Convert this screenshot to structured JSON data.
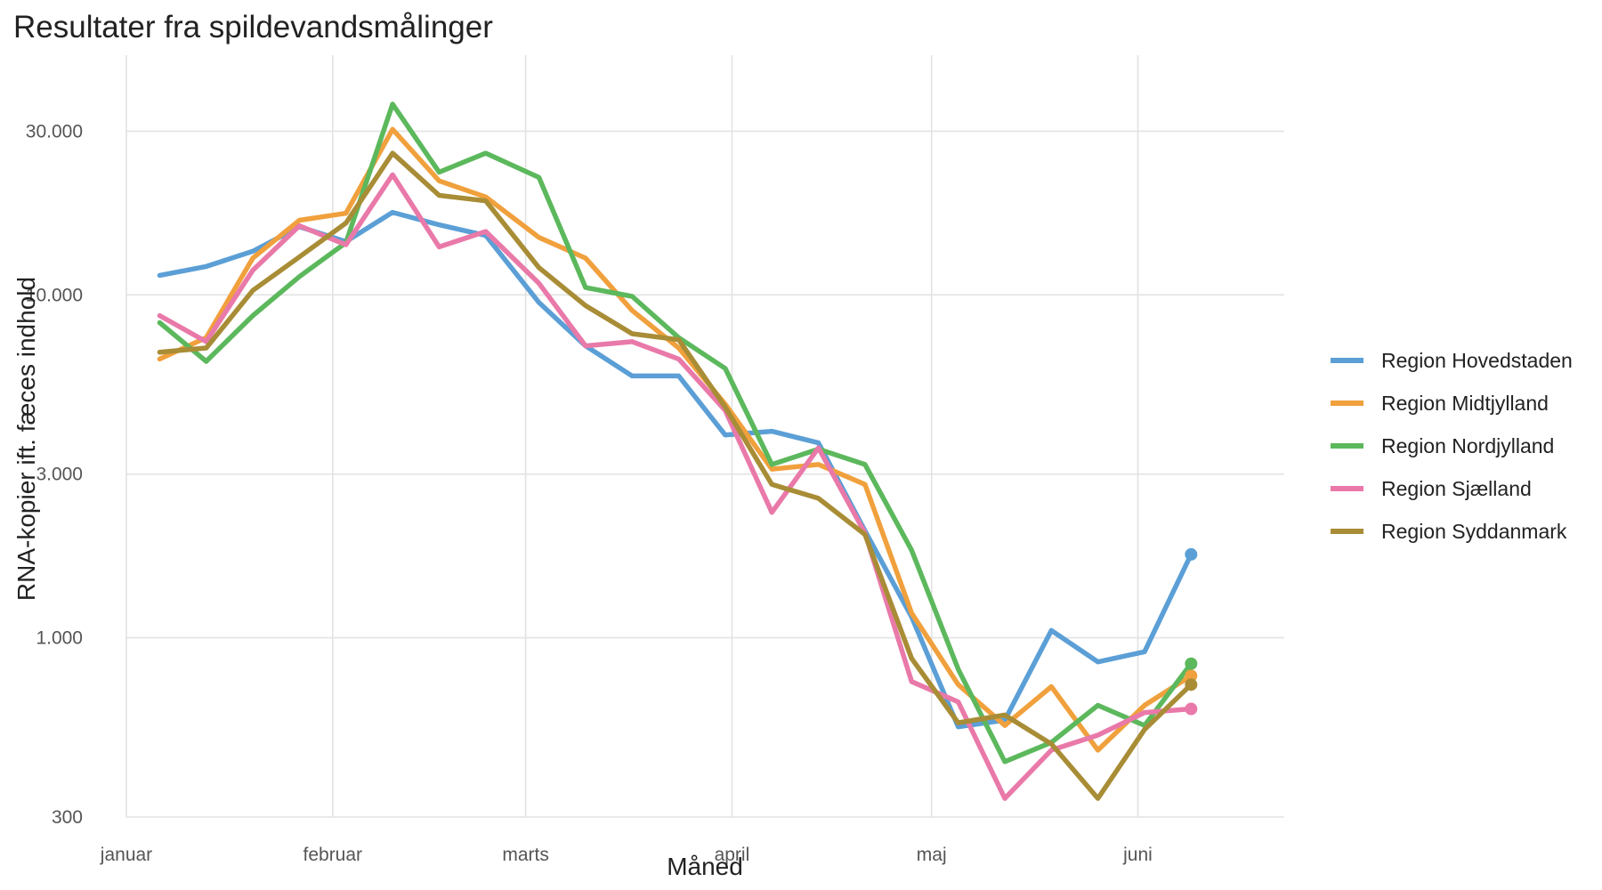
{
  "chart_data": {
    "type": "line",
    "title": "Resultater fra spildevandsmålinger",
    "xlabel": "Måned",
    "ylabel": "RNA-kopier ift. fæces indhold",
    "y_scale": "log10",
    "ylim": [
      300,
      50000
    ],
    "xlim": [
      "2024-01-01",
      "2024-06-23"
    ],
    "grid": true,
    "legend_position": "right",
    "x_ticks": [
      {
        "date": "2024-01-01",
        "label": "januar"
      },
      {
        "date": "2024-02-01",
        "label": "februar"
      },
      {
        "date": "2024-03-01",
        "label": "marts"
      },
      {
        "date": "2024-04-01",
        "label": "april"
      },
      {
        "date": "2024-05-01",
        "label": "maj"
      },
      {
        "date": "2024-06-01",
        "label": "juni"
      }
    ],
    "y_ticks": [
      {
        "value": 300,
        "label": "300"
      },
      {
        "value": 1000,
        "label": "1.000"
      },
      {
        "value": 3000,
        "label": "3.000"
      },
      {
        "value": 10000,
        "label": "10.000"
      },
      {
        "value": 30000,
        "label": "30.000"
      }
    ],
    "x": [
      "2024-01-06",
      "2024-01-13",
      "2024-01-20",
      "2024-01-27",
      "2024-02-03",
      "2024-02-10",
      "2024-02-17",
      "2024-02-24",
      "2024-03-03",
      "2024-03-10",
      "2024-03-17",
      "2024-03-24",
      "2024-03-31",
      "2024-04-07",
      "2024-04-14",
      "2024-04-21",
      "2024-04-28",
      "2024-05-05",
      "2024-05-12",
      "2024-05-19",
      "2024-05-26",
      "2024-06-02",
      "2024-06-09"
    ],
    "series": [
      {
        "name": "Region Hovedstaden",
        "color": "#5b9fd6",
        "values": [
          11400,
          12100,
          13400,
          15800,
          14300,
          17400,
          16000,
          14900,
          9500,
          7100,
          5800,
          5800,
          3900,
          4000,
          3700,
          2050,
          1150,
          550,
          575,
          1050,
          850,
          910,
          1750
        ]
      },
      {
        "name": "Region Midtjylland",
        "color": "#f0a03c",
        "values": [
          6500,
          7500,
          12800,
          16500,
          17300,
          30400,
          21500,
          19300,
          14700,
          12800,
          9000,
          7000,
          4800,
          3100,
          3200,
          2800,
          1180,
          730,
          555,
          720,
          470,
          635,
          775
        ]
      },
      {
        "name": "Region Nordjylland",
        "color": "#5cb85c",
        "values": [
          8300,
          6400,
          8700,
          11300,
          14200,
          36000,
          22800,
          25900,
          22000,
          10500,
          9900,
          7500,
          6100,
          3200,
          3550,
          3200,
          1800,
          810,
          435,
          495,
          635,
          555,
          840
        ]
      },
      {
        "name": "Region Sjælland",
        "color": "#e979a9",
        "values": [
          8700,
          7300,
          11800,
          15900,
          14000,
          22400,
          13800,
          15300,
          10800,
          7100,
          7300,
          6500,
          4600,
          2320,
          3580,
          2020,
          745,
          650,
          340,
          470,
          520,
          605,
          620
        ]
      },
      {
        "name": "Region Syddanmark",
        "color": "#a88d36",
        "values": [
          6800,
          7000,
          10300,
          12900,
          16200,
          25900,
          19500,
          18800,
          12000,
          9300,
          7700,
          7400,
          4700,
          2800,
          2550,
          2000,
          870,
          565,
          595,
          490,
          340,
          540,
          730
        ]
      }
    ]
  }
}
